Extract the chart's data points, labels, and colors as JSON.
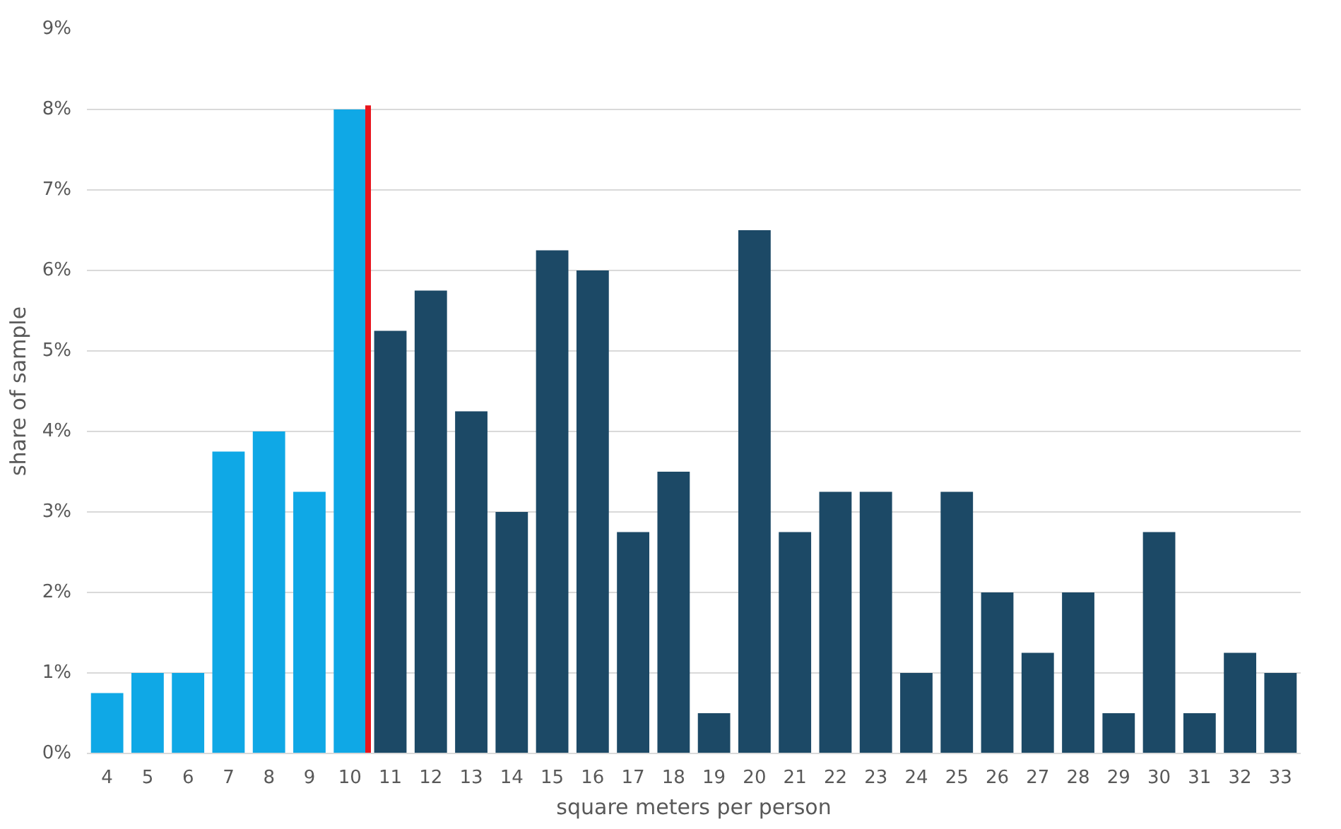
{
  "chart_data": {
    "type": "bar",
    "xlabel": "square meters per person",
    "ylabel": "share of sample",
    "x": [
      4,
      5,
      6,
      7,
      8,
      9,
      10,
      11,
      12,
      13,
      14,
      15,
      16,
      17,
      18,
      19,
      20,
      21,
      22,
      23,
      24,
      25,
      26,
      27,
      28,
      29,
      30,
      31,
      32,
      33
    ],
    "xlim": [
      3.5,
      33.5
    ],
    "xticks": [
      4,
      5,
      6,
      7,
      8,
      9,
      10,
      11,
      12,
      13,
      14,
      15,
      16,
      17,
      18,
      19,
      20,
      21,
      22,
      23,
      24,
      25,
      26,
      27,
      28,
      29,
      30,
      31,
      32,
      33
    ],
    "ylim": [
      0,
      9
    ],
    "yticks": [
      {
        "value": 0,
        "label": "0%"
      },
      {
        "value": 1,
        "label": "1%"
      },
      {
        "value": 2,
        "label": "2%"
      },
      {
        "value": 3,
        "label": "3%"
      },
      {
        "value": 4,
        "label": "4%"
      },
      {
        "value": 5,
        "label": "5%"
      },
      {
        "value": 6,
        "label": "6%"
      },
      {
        "value": 7,
        "label": "7%"
      },
      {
        "value": 8,
        "label": "8%"
      },
      {
        "value": 9,
        "label": "9%"
      }
    ],
    "grid": "y",
    "series": [
      {
        "values": [
          0.75,
          1,
          1,
          3.75,
          4,
          3.25,
          8,
          5.25,
          5.75,
          4.25,
          3,
          6.25,
          6,
          2.75,
          3.5,
          0.5,
          6.5,
          2.75,
          3.25,
          3.25,
          1,
          3.25,
          2,
          1.25,
          2,
          0.5,
          2.75,
          0.5,
          1.25,
          1
        ],
        "colors": [
          "#0fa8e6",
          "#0fa8e6",
          "#0fa8e6",
          "#0fa8e6",
          "#0fa8e6",
          "#0fa8e6",
          "#0fa8e6",
          "#1c4966",
          "#1c4966",
          "#1c4966",
          "#1c4966",
          "#1c4966",
          "#1c4966",
          "#1c4966",
          "#1c4966",
          "#1c4966",
          "#1c4966",
          "#1c4966",
          "#1c4966",
          "#1c4966",
          "#1c4966",
          "#1c4966",
          "#1c4966",
          "#1c4966",
          "#1c4966",
          "#1c4966",
          "#1c4966",
          "#1c4966",
          "#1c4966",
          "#1c4966"
        ]
      },
      {
        "type": "line",
        "x": [
          10.45,
          10.45
        ],
        "values": [
          0,
          8.05
        ],
        "color": "#e8141c"
      }
    ]
  }
}
